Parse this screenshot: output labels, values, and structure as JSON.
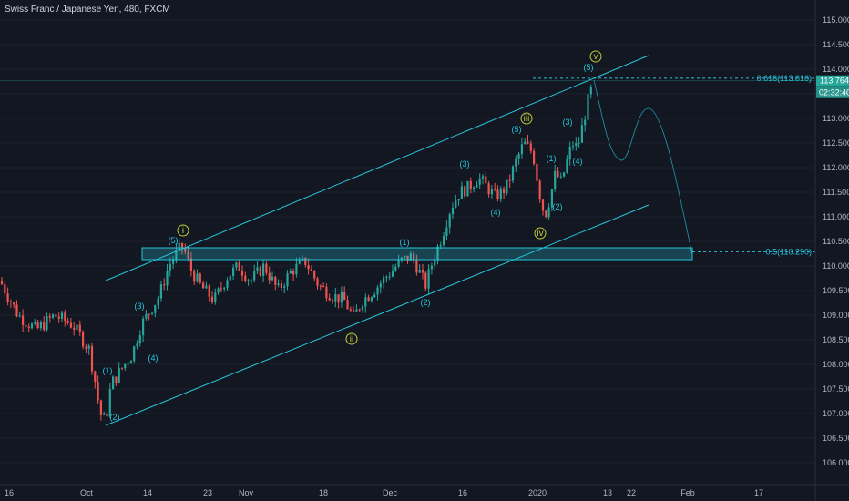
{
  "chart_data": {
    "type": "candlestick",
    "title": "Swiss Franc / Japanese Yen, 480, FXCM",
    "price_axis": {
      "ylim": [
        105.5,
        115.4
      ],
      "ticks": [
        "106.000",
        "106.500",
        "107.000",
        "107.500",
        "108.000",
        "108.500",
        "109.000",
        "109.500",
        "110.000",
        "110.500",
        "111.000",
        "111.500",
        "112.000",
        "112.500",
        "113.000",
        "113.500",
        "114.000",
        "114.500",
        "115.000"
      ]
    },
    "time_axis": {
      "labels": [
        "16",
        "Oct",
        "14",
        "23",
        "Nov",
        "18",
        "Dec",
        "16",
        "2020",
        "13",
        "22",
        "Feb",
        "17"
      ]
    },
    "last_price": "113.764",
    "countdown": "02:32:40",
    "colors": {
      "up": "#26a69a",
      "down": "#ef5350",
      "line": "#26c6da",
      "major": "#c0ca33",
      "bg": "#131722"
    },
    "fib_levels": [
      {
        "label": "0.618(113.816)",
        "value": 113.816
      },
      {
        "label": "0.5(110.290)",
        "value": 110.29
      }
    ],
    "wave_labels": [
      {
        "text": "(1)",
        "x": 118,
        "y": 410
      },
      {
        "text": "(2)",
        "x": 126,
        "y": 461
      },
      {
        "text": "(3)",
        "x": 153,
        "y": 339
      },
      {
        "text": "(4)",
        "x": 168,
        "y": 396
      },
      {
        "text": "(5)",
        "x": 190,
        "y": 267
      },
      {
        "text": "(1)",
        "x": 444,
        "y": 269
      },
      {
        "text": "(2)",
        "x": 467,
        "y": 335
      },
      {
        "text": "(3)",
        "x": 510,
        "y": 183
      },
      {
        "text": "(4)",
        "x": 544,
        "y": 236
      },
      {
        "text": "(5)",
        "x": 567,
        "y": 145
      },
      {
        "text": "(1)",
        "x": 605,
        "y": 177
      },
      {
        "text": "(2)",
        "x": 612,
        "y": 230
      },
      {
        "text": "(3)",
        "x": 623,
        "y": 137
      },
      {
        "text": "(4)",
        "x": 634,
        "y": 180
      },
      {
        "text": "(5)",
        "x": 646,
        "y": 77
      }
    ],
    "major_labels": [
      {
        "text": "i",
        "x": 201,
        "y": 256
      },
      {
        "text": "ii",
        "x": 386,
        "y": 375
      },
      {
        "text": "iii",
        "x": 578,
        "y": 133
      },
      {
        "text": "iv",
        "x": 593,
        "y": 259
      },
      {
        "text": "v",
        "x": 654,
        "y": 65
      }
    ]
  }
}
